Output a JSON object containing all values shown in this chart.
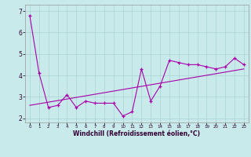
{
  "x": [
    0,
    1,
    2,
    3,
    4,
    5,
    6,
    7,
    8,
    9,
    10,
    11,
    12,
    13,
    14,
    15,
    16,
    17,
    18,
    19,
    20,
    21,
    22,
    23
  ],
  "y_main": [
    6.8,
    4.1,
    2.5,
    2.6,
    3.1,
    2.5,
    2.8,
    2.7,
    2.7,
    2.7,
    2.1,
    2.3,
    4.3,
    2.8,
    3.5,
    4.7,
    4.6,
    4.5,
    4.5,
    4.4,
    4.3,
    4.4,
    4.8,
    4.5
  ],
  "y_trend_x": [
    0,
    23
  ],
  "y_trend_y": [
    2.6,
    4.3
  ],
  "line_color": "#aa00aa",
  "bg_color": "#c8eaea",
  "grid_color": "#aad4d4",
  "xlabel": "Windchill (Refroidissement éolien,°C)",
  "ylim": [
    1.8,
    7.3
  ],
  "xlim": [
    -0.5,
    23.5
  ],
  "yticks": [
    2,
    3,
    4,
    5,
    6,
    7
  ],
  "xticks": [
    0,
    1,
    2,
    3,
    4,
    5,
    6,
    7,
    8,
    9,
    10,
    11,
    12,
    13,
    14,
    15,
    16,
    17,
    18,
    19,
    20,
    21,
    22,
    23
  ]
}
